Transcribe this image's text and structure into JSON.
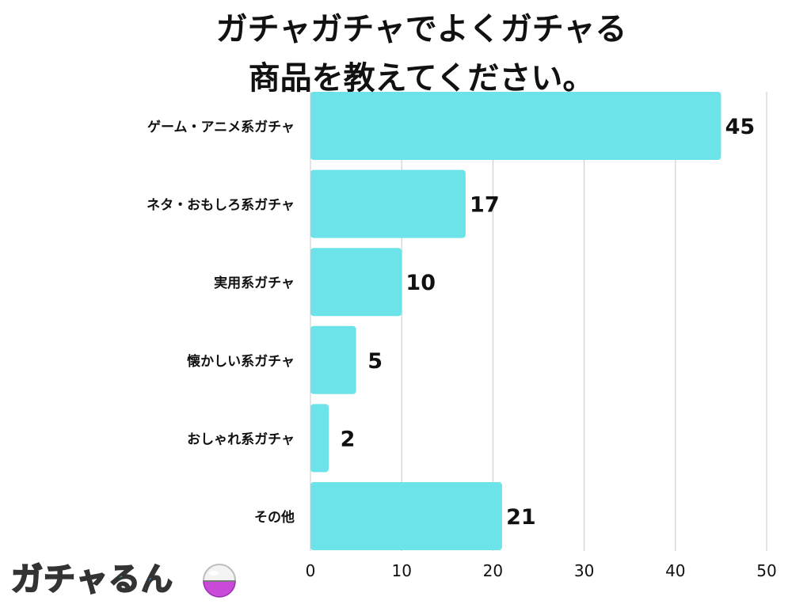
{
  "chart_data": {
    "type": "bar",
    "orientation": "horizontal",
    "title_lines": [
      "ガチャガチャでよくガチャる",
      "商品を教えてください。"
    ],
    "categories": [
      "ゲーム・アニメ系ガチャ",
      "ネタ・おもしろ系ガチャ",
      "実用系ガチャ",
      "懐かしい系ガチャ",
      "おしゃれ系ガチャ",
      "その他"
    ],
    "values": [
      45,
      17,
      10,
      5,
      2,
      21
    ],
    "value_labels": [
      "45",
      "17",
      "10",
      "5",
      "2",
      "21"
    ],
    "xlim": [
      0,
      50
    ],
    "xticks": [
      "0",
      "10",
      "20",
      "30",
      "40",
      "50"
    ],
    "grid": "vertical",
    "bar_color": "#6be3e8",
    "xlabel": "",
    "ylabel": ""
  },
  "logo": {
    "text": "ガチャるん",
    "colors": [
      "#f0506e",
      "#f59a3b",
      "#f2c94c",
      "#5ac46a",
      "#3a9be0"
    ],
    "icon": "capsule-ball-icon"
  }
}
